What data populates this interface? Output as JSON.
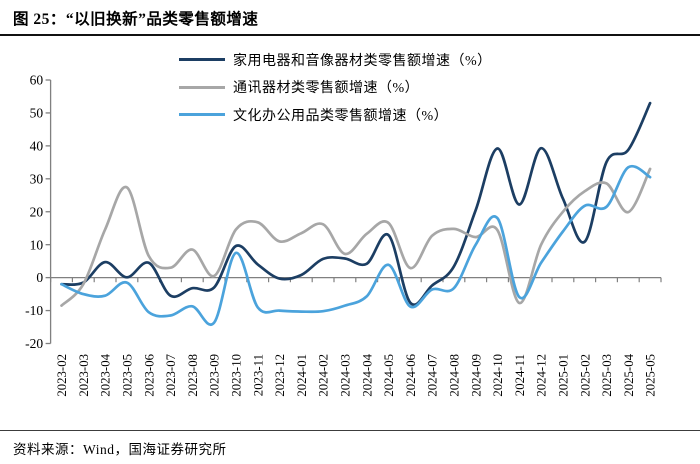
{
  "figure": {
    "number_label": "图 25：",
    "title": "图 25：“以旧换新”品类零售额增速",
    "source": "资料来源：Wind，国海证券研究所"
  },
  "colors": {
    "axis": "#808080",
    "tick_text": "#000000",
    "title_rule": "#111111",
    "footer_rule": "#3c3c3c",
    "background": "#ffffff"
  },
  "chart_data": {
    "type": "line",
    "title": "“以旧换新”品类零售额增速",
    "unit": "%",
    "smoothing": true,
    "grid": false,
    "legend_position": "top-center",
    "ylim": [
      -20,
      60
    ],
    "yticks": [
      60,
      50,
      40,
      30,
      20,
      10,
      0,
      -10,
      -20
    ],
    "x": [
      "2023-02",
      "2023-03",
      "2023-04",
      "2023-05",
      "2023-06",
      "2023-07",
      "2023-08",
      "2023-09",
      "2023-10",
      "2023-11",
      "2023-12",
      "2024-01",
      "2024-02",
      "2024-03",
      "2024-04",
      "2024-05",
      "2024-06",
      "2024-07",
      "2024-08",
      "2024-09",
      "2024-10",
      "2024-11",
      "2024-12",
      "2025-01",
      "2025-02",
      "2025-03",
      "2025-04",
      "2025-05"
    ],
    "series": [
      {
        "name": "家用电器和音像器材类零售额增速（%）",
        "color": "#1c3e63",
        "values": [
          -2.0,
          -1.5,
          4.7,
          0.1,
          4.5,
          -5.5,
          -3.2,
          -3.0,
          9.6,
          4.0,
          -0.3,
          0.8,
          5.7,
          5.8,
          4.2,
          12.9,
          -7.6,
          -2.4,
          3.4,
          20.5,
          39.2,
          22.2,
          39.3,
          24.0,
          10.9,
          35.1,
          38.8,
          53.0
        ]
      },
      {
        "name": "通讯器材类零售额增速（%）",
        "color": "#a7a7a7",
        "values": [
          -8.5,
          -2.0,
          14.6,
          27.4,
          6.6,
          3.0,
          8.5,
          0.5,
          14.6,
          16.8,
          11.0,
          13.5,
          16.2,
          7.2,
          13.3,
          16.6,
          2.9,
          12.7,
          14.8,
          12.3,
          14.4,
          -7.7,
          10.0,
          20.0,
          26.2,
          28.6,
          19.9,
          33.0
        ]
      },
      {
        "name": "文化办公用品类零售额增速（%）",
        "color": "#4ba3dc",
        "values": [
          -2.0,
          -5.0,
          -5.5,
          -1.5,
          -10.5,
          -11.5,
          -8.7,
          -13.7,
          7.5,
          -9.0,
          -10.0,
          -10.3,
          -10.2,
          -8.5,
          -5.7,
          3.9,
          -8.8,
          -3.6,
          -3.2,
          10.0,
          18.0,
          -5.9,
          4.5,
          14.0,
          21.8,
          21.5,
          33.5,
          30.5
        ]
      }
    ]
  }
}
